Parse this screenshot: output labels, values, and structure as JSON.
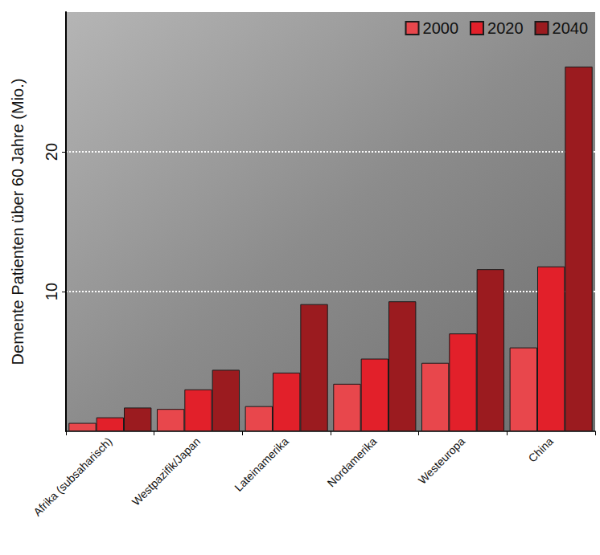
{
  "chart_data": {
    "type": "bar",
    "y_label": "Demente Patienten über 60 Jahre (Mio.)",
    "categories": [
      "Afrika (subsaharisch)",
      "Westpazifik/Japan",
      "Lateinamerika",
      "Nordamerika",
      "Westeuropa",
      "China"
    ],
    "series": [
      {
        "name": "2000",
        "color": "#e8474c",
        "values": [
          0.6,
          1.6,
          1.8,
          3.4,
          4.9,
          6.0
        ]
      },
      {
        "name": "2020",
        "color": "#e2202a",
        "values": [
          1.0,
          3.0,
          4.2,
          5.2,
          7.0,
          11.8
        ]
      },
      {
        "name": "2040",
        "color": "#9b1b1f",
        "values": [
          1.7,
          4.4,
          9.1,
          9.3,
          11.6,
          26.1
        ]
      }
    ],
    "ylim": [
      0,
      30
    ],
    "yticks": [
      10,
      20
    ],
    "grid": true,
    "legend": "top-right"
  }
}
